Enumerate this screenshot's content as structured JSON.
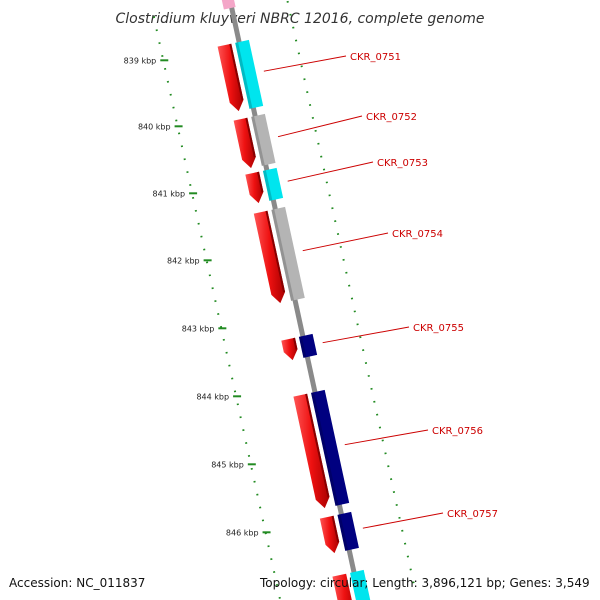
{
  "title": "Clostridium kluyveri NBRC 12016, complete genome",
  "ruler": [
    {
      "label": "839 kbp"
    },
    {
      "label": "840 kbp"
    },
    {
      "label": "841 kbp"
    },
    {
      "label": "842 kbp"
    },
    {
      "label": "843 kbp"
    },
    {
      "label": "844 kbp"
    },
    {
      "label": "845 kbp"
    },
    {
      "label": "846 kbp"
    }
  ],
  "genes": [
    {
      "id": "CKR_0751",
      "cog_color": "#00e5ee"
    },
    {
      "id": "CKR_0752",
      "cog_color": "#b4b4b4"
    },
    {
      "id": "CKR_0753",
      "cog_color": "#00e5ee"
    },
    {
      "id": "CKR_0754",
      "cog_color": "#b4b4b4"
    },
    {
      "id": "CKR_0755",
      "cog_color": "#000080"
    },
    {
      "id": "CKR_0756",
      "cog_color": "#000080"
    },
    {
      "id": "CKR_0757",
      "cog_color": "#000080"
    }
  ],
  "colors": {
    "backbone": "#8a8a8a",
    "cds": "#ee1111",
    "ticks": "#228b22",
    "label": "#cc0000"
  },
  "footer": {
    "accession": "Accession: NC_011837",
    "summary": "Topology: circular; Length: 3,896,121 bp; Genes: 3,549"
  }
}
